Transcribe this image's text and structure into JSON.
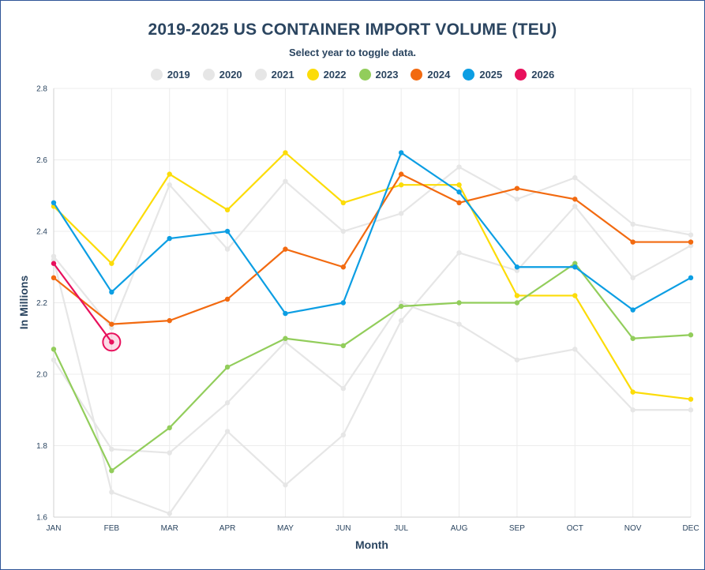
{
  "chart": {
    "title": "2019-2025 US CONTAINER IMPORT VOLUME (TEU)",
    "subtitle": "Select year to toggle data."
  },
  "chart_data": {
    "type": "line",
    "title": "2019-2025 US CONTAINER IMPORT VOLUME (TEU)",
    "subtitle": "Select year to toggle data.",
    "xlabel": "Month",
    "ylabel": "In Millions",
    "categories": [
      "JAN",
      "FEB",
      "MAR",
      "APR",
      "MAY",
      "JUN",
      "JUL",
      "AUG",
      "SEP",
      "OCT",
      "NOV",
      "DEC"
    ],
    "ylim": [
      1.6,
      2.8
    ],
    "yticks": [
      "1.6",
      "1.8",
      "2.0",
      "2.2",
      "2.4",
      "2.6",
      "2.8"
    ],
    "grid": true,
    "legend_position": "top",
    "series": [
      {
        "name": "2019",
        "color": "#e6e6e6",
        "values": [
          2.04,
          1.79,
          1.78,
          1.92,
          2.09,
          1.96,
          2.2,
          2.14,
          2.04,
          2.07,
          1.9,
          1.9
        ]
      },
      {
        "name": "2020",
        "color": "#e6e6e6",
        "values": [
          2.32,
          1.67,
          1.61,
          1.84,
          1.69,
          1.83,
          2.15,
          2.34,
          2.29,
          2.47,
          2.27,
          2.36
        ]
      },
      {
        "name": "2021",
        "color": "#e6e6e6",
        "values": [
          2.33,
          2.13,
          2.53,
          2.35,
          2.54,
          2.4,
          2.45,
          2.58,
          2.49,
          2.55,
          2.42,
          2.39
        ]
      },
      {
        "name": "2022",
        "color": "#fcdc08",
        "values": [
          2.47,
          2.31,
          2.56,
          2.46,
          2.62,
          2.48,
          2.53,
          2.53,
          2.22,
          2.22,
          1.95,
          1.93
        ]
      },
      {
        "name": "2023",
        "color": "#92cd5b",
        "values": [
          2.07,
          1.73,
          1.85,
          2.02,
          2.1,
          2.08,
          2.19,
          2.2,
          2.2,
          2.31,
          2.1,
          2.11
        ]
      },
      {
        "name": "2024",
        "color": "#f26a10",
        "values": [
          2.27,
          2.14,
          2.15,
          2.21,
          2.35,
          2.3,
          2.56,
          2.48,
          2.52,
          2.49,
          2.37,
          2.37
        ]
      },
      {
        "name": "2025",
        "color": "#0c9ee3",
        "values": [
          2.48,
          2.23,
          2.38,
          2.4,
          2.17,
          2.2,
          2.62,
          2.51,
          2.3,
          2.3,
          2.18,
          2.27
        ]
      },
      {
        "name": "2026",
        "color": "#e8105c",
        "values": [
          2.31,
          2.09,
          null,
          null,
          null,
          null,
          null,
          null,
          null,
          null,
          null,
          null
        ],
        "highlight_index": 1
      }
    ]
  }
}
